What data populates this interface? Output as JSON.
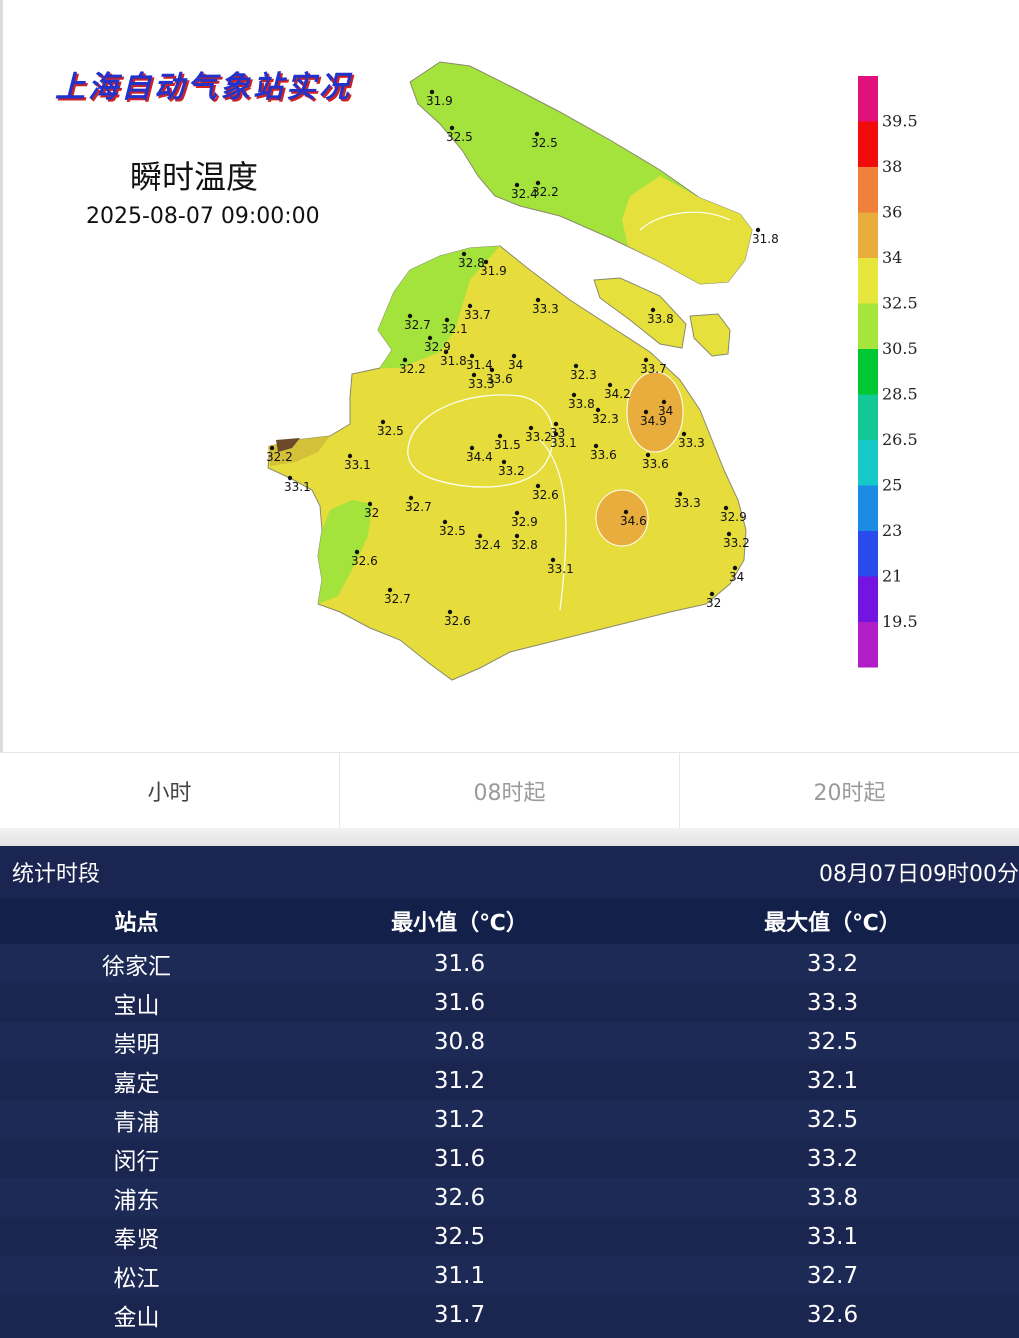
{
  "map": {
    "brand_title": "上海自动气象站实况",
    "product_title": "瞬时温度",
    "timestamp": "2025-08-07 09:00:00",
    "legend": {
      "labels": [
        "39.5",
        "38",
        "36",
        "34",
        "32.5",
        "30.5",
        "28.5",
        "26.5",
        "25",
        "23",
        "21",
        "19.5"
      ],
      "colors": [
        "#e0117a",
        "#f20b0b",
        "#f0803a",
        "#e8ad3c",
        "#e6e63c",
        "#a6e63c",
        "#00c832",
        "#14c896",
        "#16c8c8",
        "#1a8ce6",
        "#2a4aeb",
        "#7314e0",
        "#b01ec8"
      ]
    },
    "stations": [
      {
        "value": "31.9"
      },
      {
        "value": "32.5"
      },
      {
        "value": "32.5"
      },
      {
        "value": "32.4"
      },
      {
        "value": "32.2"
      },
      {
        "value": "31.8"
      },
      {
        "value": "32.8"
      },
      {
        "value": "31.9"
      },
      {
        "value": "33.7"
      },
      {
        "value": "33.3"
      },
      {
        "value": "33.8"
      },
      {
        "value": "32.7"
      },
      {
        "value": "32.1"
      },
      {
        "value": "32.9"
      },
      {
        "value": "31.8"
      },
      {
        "value": "32.2"
      },
      {
        "value": "31.4"
      },
      {
        "value": "34"
      },
      {
        "value": "33.3"
      },
      {
        "value": "33.6"
      },
      {
        "value": "33.7"
      },
      {
        "value": "32.3"
      },
      {
        "value": "34.2"
      },
      {
        "value": "33.8"
      },
      {
        "value": "32.3"
      },
      {
        "value": "34"
      },
      {
        "value": "34.9"
      },
      {
        "value": "32.5"
      },
      {
        "value": "31.5"
      },
      {
        "value": "33.2"
      },
      {
        "value": "33"
      },
      {
        "value": "33.1"
      },
      {
        "value": "33.6"
      },
      {
        "value": "33.3"
      },
      {
        "value": "33.6"
      },
      {
        "value": "32.2"
      },
      {
        "value": "33.1"
      },
      {
        "value": "34.4"
      },
      {
        "value": "33.2"
      },
      {
        "value": "33.1"
      },
      {
        "value": "32"
      },
      {
        "value": "32.7"
      },
      {
        "value": "32.6"
      },
      {
        "value": "32.5"
      },
      {
        "value": "32.9"
      },
      {
        "value": "32.4"
      },
      {
        "value": "32.8"
      },
      {
        "value": "34.6"
      },
      {
        "value": "33.3"
      },
      {
        "value": "32.9"
      },
      {
        "value": "33.2"
      },
      {
        "value": "32.6"
      },
      {
        "value": "33.1"
      },
      {
        "value": "34"
      },
      {
        "value": "32"
      },
      {
        "value": "32.7"
      },
      {
        "value": "32.6"
      }
    ]
  },
  "tabs": [
    {
      "label": "小时",
      "active": true
    },
    {
      "label": "08时起",
      "active": false
    },
    {
      "label": "20时起",
      "active": false
    }
  ],
  "stats": {
    "period_label": "统计时段",
    "period_value": "08月07日09时00分",
    "columns": [
      "站点",
      "最小值（℃）",
      "最大值（℃）"
    ],
    "rows": [
      [
        "徐家汇",
        "31.6",
        "33.2"
      ],
      [
        "宝山",
        "31.6",
        "33.3"
      ],
      [
        "崇明",
        "30.8",
        "32.5"
      ],
      [
        "嘉定",
        "31.2",
        "32.1"
      ],
      [
        "青浦",
        "31.2",
        "32.5"
      ],
      [
        "闵行",
        "31.6",
        "33.2"
      ],
      [
        "浦东",
        "32.6",
        "33.8"
      ],
      [
        "奉贤",
        "32.5",
        "33.1"
      ],
      [
        "松江",
        "31.1",
        "32.7"
      ],
      [
        "金山",
        "31.7",
        "32.6"
      ]
    ]
  }
}
